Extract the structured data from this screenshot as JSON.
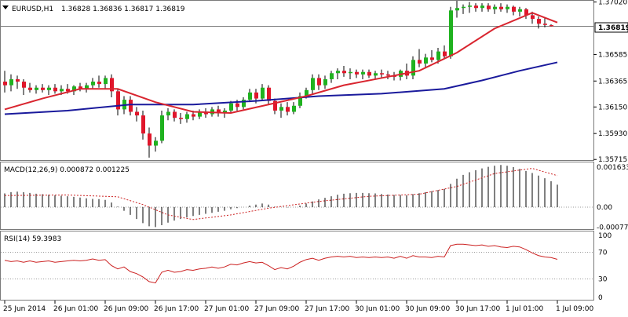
{
  "window": {
    "symbol_title": "EURUSD,H1",
    "ohlc_text": "1.36828 1.36836 1.36817 1.36819",
    "current_price_label": "1.36819"
  },
  "colors": {
    "background": "#ffffff",
    "bull_candle": "#1fb21f",
    "bear_candle": "#e0162b",
    "wick": "#000000",
    "ma_fast": "#d9252f",
    "ma_slow": "#1a1a9c",
    "macd_hist": "#000000",
    "macd_signal": "#cc2222",
    "rsi_line": "#cc2222",
    "grid_dotted": "#999999",
    "separator": "#7a7a7a"
  },
  "chart_data": [
    {
      "type": "candlestick",
      "title": "EURUSD,H1",
      "price_axis_ticks": [
        "1.37020",
        "1.36585",
        "1.36365",
        "1.36150",
        "1.35930",
        "1.35715"
      ],
      "ylim": [
        1.3571,
        1.3703
      ],
      "current_price": 1.36819,
      "x_tick_labels": [
        "25 Jun 2014",
        "26 Jun 01:00",
        "26 Jun 09:00",
        "26 Jun 17:00",
        "27 Jun 01:00",
        "27 Jun 09:00",
        "27 Jun 17:00",
        "30 Jun 01:00",
        "30 Jun 09:00",
        "30 Jun 17:00",
        "1 Jul 01:00",
        "1 Jul 09:00"
      ],
      "x_tick_bar_index": [
        0,
        8,
        16,
        24,
        32,
        40,
        48,
        56,
        64,
        72,
        80,
        88
      ],
      "candles": [
        {
          "o": 1.3636,
          "h": 1.3645,
          "l": 1.3627,
          "c": 1.3633
        },
        {
          "o": 1.3633,
          "h": 1.3642,
          "l": 1.3628,
          "c": 1.3638
        },
        {
          "o": 1.3638,
          "h": 1.3641,
          "l": 1.363,
          "c": 1.3636
        },
        {
          "o": 1.3636,
          "h": 1.3638,
          "l": 1.3625,
          "c": 1.3631
        },
        {
          "o": 1.3631,
          "h": 1.3635,
          "l": 1.3627,
          "c": 1.3629
        },
        {
          "o": 1.3629,
          "h": 1.3633,
          "l": 1.3626,
          "c": 1.3631
        },
        {
          "o": 1.3631,
          "h": 1.3634,
          "l": 1.3627,
          "c": 1.3629
        },
        {
          "o": 1.3629,
          "h": 1.3633,
          "l": 1.3625,
          "c": 1.3631
        },
        {
          "o": 1.3631,
          "h": 1.3634,
          "l": 1.3626,
          "c": 1.3628
        },
        {
          "o": 1.3628,
          "h": 1.3633,
          "l": 1.3625,
          "c": 1.363
        },
        {
          "o": 1.363,
          "h": 1.3634,
          "l": 1.3626,
          "c": 1.3628
        },
        {
          "o": 1.3628,
          "h": 1.3633,
          "l": 1.3625,
          "c": 1.3632
        },
        {
          "o": 1.3632,
          "h": 1.3635,
          "l": 1.3628,
          "c": 1.363
        },
        {
          "o": 1.363,
          "h": 1.3635,
          "l": 1.3627,
          "c": 1.3633
        },
        {
          "o": 1.3633,
          "h": 1.3639,
          "l": 1.363,
          "c": 1.3636
        },
        {
          "o": 1.3636,
          "h": 1.3641,
          "l": 1.3631,
          "c": 1.3634
        },
        {
          "o": 1.3634,
          "h": 1.3641,
          "l": 1.363,
          "c": 1.3639
        },
        {
          "o": 1.3639,
          "h": 1.3642,
          "l": 1.3623,
          "c": 1.3628
        },
        {
          "o": 1.3628,
          "h": 1.363,
          "l": 1.3608,
          "c": 1.3613
        },
        {
          "o": 1.3613,
          "h": 1.3624,
          "l": 1.3609,
          "c": 1.3621
        },
        {
          "o": 1.3621,
          "h": 1.3624,
          "l": 1.3608,
          "c": 1.3611
        },
        {
          "o": 1.3611,
          "h": 1.3615,
          "l": 1.3603,
          "c": 1.3608
        },
        {
          "o": 1.3608,
          "h": 1.3612,
          "l": 1.3588,
          "c": 1.3593
        },
        {
          "o": 1.3593,
          "h": 1.3598,
          "l": 1.3573,
          "c": 1.3583
        },
        {
          "o": 1.3583,
          "h": 1.359,
          "l": 1.3578,
          "c": 1.3587
        },
        {
          "o": 1.3587,
          "h": 1.3612,
          "l": 1.3585,
          "c": 1.3608
        },
        {
          "o": 1.3608,
          "h": 1.3614,
          "l": 1.3604,
          "c": 1.3611
        },
        {
          "o": 1.3611,
          "h": 1.3613,
          "l": 1.3603,
          "c": 1.3606
        },
        {
          "o": 1.3606,
          "h": 1.361,
          "l": 1.3601,
          "c": 1.3605
        },
        {
          "o": 1.3605,
          "h": 1.3611,
          "l": 1.3602,
          "c": 1.3609
        },
        {
          "o": 1.3609,
          "h": 1.3612,
          "l": 1.3604,
          "c": 1.3607
        },
        {
          "o": 1.3607,
          "h": 1.3613,
          "l": 1.3605,
          "c": 1.3611
        },
        {
          "o": 1.3611,
          "h": 1.3614,
          "l": 1.3606,
          "c": 1.3609
        },
        {
          "o": 1.3609,
          "h": 1.3615,
          "l": 1.3607,
          "c": 1.3613
        },
        {
          "o": 1.3613,
          "h": 1.3616,
          "l": 1.3607,
          "c": 1.361
        },
        {
          "o": 1.361,
          "h": 1.3614,
          "l": 1.3606,
          "c": 1.3612
        },
        {
          "o": 1.3612,
          "h": 1.362,
          "l": 1.361,
          "c": 1.3618
        },
        {
          "o": 1.3618,
          "h": 1.3621,
          "l": 1.3612,
          "c": 1.3615
        },
        {
          "o": 1.3615,
          "h": 1.3623,
          "l": 1.3613,
          "c": 1.3621
        },
        {
          "o": 1.3621,
          "h": 1.363,
          "l": 1.3619,
          "c": 1.3627
        },
        {
          "o": 1.3627,
          "h": 1.363,
          "l": 1.3618,
          "c": 1.3622
        },
        {
          "o": 1.3622,
          "h": 1.3634,
          "l": 1.362,
          "c": 1.3631
        },
        {
          "o": 1.3631,
          "h": 1.3633,
          "l": 1.3617,
          "c": 1.362
        },
        {
          "o": 1.362,
          "h": 1.3622,
          "l": 1.3609,
          "c": 1.3612
        },
        {
          "o": 1.3612,
          "h": 1.3618,
          "l": 1.3606,
          "c": 1.3615
        },
        {
          "o": 1.3615,
          "h": 1.3619,
          "l": 1.3608,
          "c": 1.3611
        },
        {
          "o": 1.3611,
          "h": 1.3619,
          "l": 1.3609,
          "c": 1.3616
        },
        {
          "o": 1.3616,
          "h": 1.3627,
          "l": 1.3614,
          "c": 1.3624
        },
        {
          "o": 1.3624,
          "h": 1.3631,
          "l": 1.3622,
          "c": 1.3629
        },
        {
          "o": 1.3629,
          "h": 1.3642,
          "l": 1.3626,
          "c": 1.3639
        },
        {
          "o": 1.3639,
          "h": 1.3642,
          "l": 1.3629,
          "c": 1.3633
        },
        {
          "o": 1.3633,
          "h": 1.3641,
          "l": 1.363,
          "c": 1.3638
        },
        {
          "o": 1.3638,
          "h": 1.3645,
          "l": 1.3635,
          "c": 1.3643
        },
        {
          "o": 1.3643,
          "h": 1.3647,
          "l": 1.3638,
          "c": 1.3645
        },
        {
          "o": 1.3645,
          "h": 1.3649,
          "l": 1.364,
          "c": 1.3643
        },
        {
          "o": 1.3643,
          "h": 1.3647,
          "l": 1.3638,
          "c": 1.3644
        },
        {
          "o": 1.3644,
          "h": 1.3646,
          "l": 1.3639,
          "c": 1.3642
        },
        {
          "o": 1.3642,
          "h": 1.3646,
          "l": 1.3638,
          "c": 1.3644
        },
        {
          "o": 1.3644,
          "h": 1.3646,
          "l": 1.3639,
          "c": 1.3641
        },
        {
          "o": 1.3641,
          "h": 1.3645,
          "l": 1.3638,
          "c": 1.3643
        },
        {
          "o": 1.3643,
          "h": 1.3646,
          "l": 1.3639,
          "c": 1.3642
        },
        {
          "o": 1.3642,
          "h": 1.3645,
          "l": 1.3638,
          "c": 1.3641
        },
        {
          "o": 1.3641,
          "h": 1.3644,
          "l": 1.3637,
          "c": 1.364
        },
        {
          "o": 1.364,
          "h": 1.3646,
          "l": 1.3637,
          "c": 1.3645
        },
        {
          "o": 1.3645,
          "h": 1.3651,
          "l": 1.3638,
          "c": 1.3641
        },
        {
          "o": 1.3641,
          "h": 1.3657,
          "l": 1.3638,
          "c": 1.3654
        },
        {
          "o": 1.3654,
          "h": 1.3663,
          "l": 1.3648,
          "c": 1.3651
        },
        {
          "o": 1.3651,
          "h": 1.3659,
          "l": 1.3647,
          "c": 1.3656
        },
        {
          "o": 1.3656,
          "h": 1.3662,
          "l": 1.3652,
          "c": 1.3654
        },
        {
          "o": 1.3654,
          "h": 1.3664,
          "l": 1.3651,
          "c": 1.3661
        },
        {
          "o": 1.3661,
          "h": 1.3666,
          "l": 1.3655,
          "c": 1.3657
        },
        {
          "o": 1.3657,
          "h": 1.3698,
          "l": 1.3655,
          "c": 1.3695
        },
        {
          "o": 1.3695,
          "h": 1.3703,
          "l": 1.3689,
          "c": 1.3697
        },
        {
          "o": 1.3697,
          "h": 1.37,
          "l": 1.3692,
          "c": 1.3698
        },
        {
          "o": 1.3698,
          "h": 1.3702,
          "l": 1.3693,
          "c": 1.3699
        },
        {
          "o": 1.3699,
          "h": 1.3701,
          "l": 1.3694,
          "c": 1.3697
        },
        {
          "o": 1.3697,
          "h": 1.3701,
          "l": 1.3694,
          "c": 1.3699
        },
        {
          "o": 1.3699,
          "h": 1.3701,
          "l": 1.3694,
          "c": 1.3696
        },
        {
          "o": 1.3696,
          "h": 1.37,
          "l": 1.3692,
          "c": 1.3698
        },
        {
          "o": 1.3698,
          "h": 1.3701,
          "l": 1.3694,
          "c": 1.3696
        },
        {
          "o": 1.3696,
          "h": 1.37,
          "l": 1.3693,
          "c": 1.3698
        },
        {
          "o": 1.3698,
          "h": 1.3699,
          "l": 1.3691,
          "c": 1.3694
        },
        {
          "o": 1.3694,
          "h": 1.3698,
          "l": 1.369,
          "c": 1.3696
        },
        {
          "o": 1.3696,
          "h": 1.3697,
          "l": 1.3688,
          "c": 1.3691
        },
        {
          "o": 1.3691,
          "h": 1.3694,
          "l": 1.3684,
          "c": 1.3688
        },
        {
          "o": 1.3688,
          "h": 1.369,
          "l": 1.368,
          "c": 1.3684
        },
        {
          "o": 1.3684,
          "h": 1.3689,
          "l": 1.3681,
          "c": 1.3683
        },
        {
          "o": 1.36828,
          "h": 1.36836,
          "l": 1.36817,
          "c": 1.36819
        }
      ],
      "ma_fast": {
        "x": [
          0,
          6,
          12,
          18,
          24,
          30,
          36,
          42,
          48,
          54,
          60,
          66,
          72,
          78,
          84,
          88
        ],
        "values": [
          1.3613,
          1.3622,
          1.363,
          1.363,
          1.3619,
          1.3611,
          1.361,
          1.3617,
          1.3624,
          1.3633,
          1.3639,
          1.3645,
          1.366,
          1.368,
          1.3693,
          1.3685
        ]
      },
      "ma_slow": {
        "x": [
          0,
          10,
          20,
          30,
          40,
          50,
          60,
          70,
          76,
          82,
          88
        ],
        "values": [
          1.3609,
          1.3612,
          1.3617,
          1.3617,
          1.362,
          1.3624,
          1.3626,
          1.363,
          1.3637,
          1.3645,
          1.3652
        ]
      }
    },
    {
      "type": "bar",
      "title": "MACD(12,26,9) 0.000872 0.001225",
      "axis_ticks": [
        "0.001633",
        "0.00",
        "-0.000774"
      ],
      "ylim": [
        -0.00082,
        0.0017
      ],
      "histogram": [
        0.00053,
        0.00058,
        0.0006,
        0.00058,
        0.00055,
        0.00052,
        0.0005,
        0.00048,
        0.00046,
        0.00044,
        0.00042,
        0.0004,
        0.00037,
        0.00034,
        0.00032,
        0.00031,
        0.00028,
        0.00018,
        2e-05,
        -0.00014,
        -0.0003,
        -0.00046,
        -0.00062,
        -0.00074,
        -0.00077,
        -0.0007,
        -0.0006,
        -0.00052,
        -0.00046,
        -0.0004,
        -0.00034,
        -0.0003,
        -0.00026,
        -0.00022,
        -0.00018,
        -0.00014,
        -8e-05,
        -4e-05,
        0.0,
        6e-05,
        0.0001,
        0.00014,
        0.0001,
        2e-05,
        0.0,
        -1e-05,
        0.0,
        6e-05,
        0.00014,
        0.00022,
        0.0003,
        0.00036,
        0.00042,
        0.00048,
        0.00052,
        0.00054,
        0.00055,
        0.00055,
        0.00054,
        0.00053,
        0.00051,
        0.00049,
        0.00047,
        0.00047,
        0.00046,
        0.0005,
        0.00054,
        0.00058,
        0.00062,
        0.00066,
        0.0007,
        0.0009,
        0.0011,
        0.00125,
        0.00135,
        0.00143,
        0.0015,
        0.00156,
        0.0016,
        0.00163,
        0.0016,
        0.00155,
        0.00148,
        0.0014,
        0.00132,
        0.00122,
        0.00112,
        0.001,
        0.00087
      ],
      "signal": {
        "x": [
          0,
          10,
          18,
          22,
          26,
          30,
          36,
          42,
          50,
          58,
          66,
          72,
          78,
          84,
          88
        ],
        "values": [
          0.00045,
          0.00047,
          0.0004,
          0.0001,
          -0.0003,
          -0.00048,
          -0.0003,
          -4e-05,
          0.00022,
          0.00042,
          0.0005,
          0.0008,
          0.0013,
          0.0015,
          0.00122
        ]
      }
    },
    {
      "type": "line",
      "title": "RSI(14) 59.3983",
      "axis_ticks": [
        "100",
        "70",
        "30",
        "0"
      ],
      "ylim": [
        0,
        100
      ],
      "levels": [
        70,
        30
      ],
      "values": [
        58,
        56,
        57,
        55,
        57,
        55,
        56,
        57,
        55,
        56,
        57,
        58,
        57,
        58,
        60,
        58,
        59,
        50,
        45,
        48,
        41,
        38,
        33,
        26,
        24,
        40,
        43,
        40,
        41,
        44,
        43,
        45,
        46,
        48,
        46,
        48,
        52,
        51,
        54,
        56,
        54,
        55,
        50,
        44,
        47,
        45,
        49,
        55,
        59,
        61,
        58,
        61,
        63,
        64,
        63,
        64,
        62,
        63,
        62,
        63,
        62,
        63,
        61,
        64,
        61,
        65,
        63,
        63,
        62,
        64,
        63,
        80,
        82,
        82,
        81,
        80,
        81,
        79,
        80,
        78,
        77,
        79,
        78,
        74,
        69,
        65,
        63,
        62,
        59.4
      ]
    }
  ]
}
